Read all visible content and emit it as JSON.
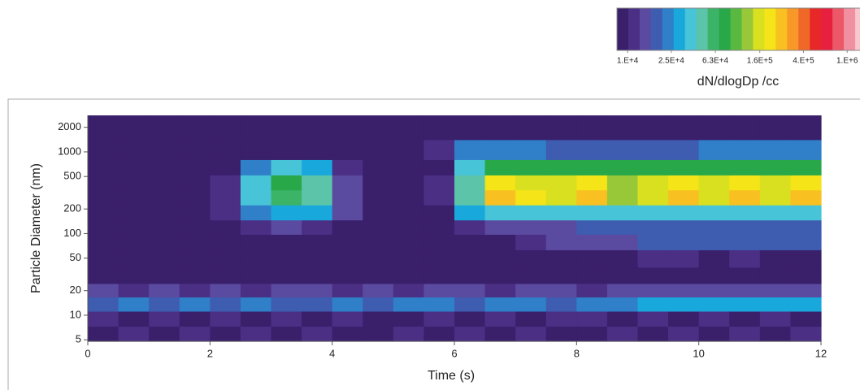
{
  "chart_data": {
    "type": "heatmap",
    "x_label": "Time (s)",
    "y_label": "Particle Diameter (nm)",
    "colorbar_label": "dN/dlogDp /cc",
    "xlim": [
      0,
      12
    ],
    "xticks": [
      0,
      2,
      4,
      6,
      8,
      10,
      12
    ],
    "ylim": [
      4.8,
      2800
    ],
    "yticks": [
      5,
      10,
      20,
      50,
      100,
      200,
      500,
      1000,
      2000
    ],
    "y_scale": "log",
    "color_scale": "log",
    "clim": [
      8000,
      1500000
    ],
    "cticks": [
      {
        "value": 10000,
        "label": "1.E+4"
      },
      {
        "value": 25000,
        "label": "2.5E+4"
      },
      {
        "value": 63000,
        "label": "6.3E+4"
      },
      {
        "value": 160000,
        "label": "1.6E+5"
      },
      {
        "value": 400000,
        "label": "4.E+5"
      },
      {
        "value": 1000000,
        "label": "1.E+6"
      }
    ],
    "colormap": [
      "#3a1f6b",
      "#4b2f85",
      "#5a4aa0",
      "#3e5cb0",
      "#2f80c8",
      "#18a8dc",
      "#48c4d8",
      "#5cc4a8",
      "#3cb468",
      "#28a848",
      "#58b840",
      "#98c838",
      "#d8e020",
      "#f4e418",
      "#f8c020",
      "#f89828",
      "#f06828",
      "#e82828",
      "#e82040",
      "#ec5868",
      "#f090a0",
      "#f8c8cc"
    ],
    "x": [
      0.25,
      0.75,
      1.25,
      1.75,
      2.25,
      2.75,
      3.25,
      3.75,
      4.25,
      4.75,
      5.25,
      5.75,
      6.25,
      6.75,
      7.25,
      7.75,
      8.25,
      8.75,
      9.25,
      9.75,
      10.25,
      10.75,
      11.25,
      11.75
    ],
    "y": [
      6,
      9,
      14,
      20,
      30,
      50,
      80,
      120,
      180,
      280,
      420,
      650,
      1000,
      2000
    ],
    "values": [
      [
        9000,
        12000,
        9000,
        11000,
        9000,
        12000,
        9000,
        11000,
        9000,
        9000,
        12000,
        9000,
        11000,
        9000,
        12000,
        9000,
        9000,
        12000,
        9000,
        11000,
        9000,
        12000,
        9000,
        11000
      ],
      [
        11000,
        9000,
        12000,
        9000,
        11000,
        9000,
        12000,
        9000,
        11000,
        9000,
        9000,
        12000,
        9000,
        11000,
        9000,
        12000,
        11000,
        9000,
        12000,
        9000,
        12000,
        9000,
        11000,
        9000
      ],
      [
        20000,
        22000,
        18000,
        22000,
        20000,
        22000,
        20000,
        18000,
        22000,
        20000,
        24000,
        22000,
        20000,
        24000,
        22000,
        20000,
        22000,
        26000,
        28000,
        30000,
        28000,
        30000,
        32000,
        30000
      ],
      [
        13000,
        12000,
        14000,
        12000,
        13000,
        12000,
        14000,
        13000,
        12000,
        13000,
        12000,
        14000,
        13000,
        12000,
        13000,
        14000,
        12000,
        14000,
        15000,
        14000,
        15000,
        14000,
        15000,
        14000
      ],
      [
        9000,
        9000,
        9000,
        9000,
        9000,
        9000,
        9000,
        9000,
        9000,
        9000,
        9000,
        9000,
        9000,
        9000,
        9000,
        9000,
        9000,
        9000,
        9000,
        9000,
        9000,
        9000,
        9000,
        9000
      ],
      [
        9000,
        9000,
        9000,
        9000,
        9000,
        9000,
        9000,
        9000,
        9000,
        9000,
        9000,
        9000,
        9000,
        9000,
        9000,
        9000,
        10000,
        10000,
        11000,
        11000,
        10000,
        11000,
        10000,
        10000
      ],
      [
        9000,
        9000,
        9000,
        9000,
        9000,
        9000,
        9000,
        9000,
        9000,
        9000,
        9000,
        9000,
        9000,
        9000,
        11000,
        13000,
        15000,
        16000,
        17000,
        18000,
        17000,
        18000,
        17000,
        18000
      ],
      [
        9000,
        10000,
        9000,
        9000,
        9000,
        11000,
        14000,
        12000,
        10000,
        9000,
        9000,
        9000,
        12000,
        14000,
        14000,
        16000,
        17000,
        18000,
        18000,
        18000,
        19000,
        19000,
        19000,
        19000
      ],
      [
        9000,
        9000,
        9000,
        9000,
        11000,
        22000,
        30000,
        28000,
        14000,
        9000,
        9000,
        9000,
        30000,
        40000,
        40000,
        40000,
        40000,
        40000,
        40000,
        40000,
        40000,
        40000,
        40000,
        40000
      ],
      [
        9000,
        9000,
        9000,
        9000,
        12000,
        35000,
        60000,
        45000,
        15000,
        9000,
        9000,
        11000,
        50000,
        250000,
        200000,
        150000,
        280000,
        130000,
        160000,
        250000,
        170000,
        250000,
        160000,
        250000
      ],
      [
        9000,
        9000,
        9000,
        9000,
        12000,
        35000,
        70000,
        50000,
        15000,
        9000,
        9000,
        11000,
        50000,
        200000,
        170000,
        140000,
        220000,
        130000,
        150000,
        200000,
        160000,
        200000,
        150000,
        200000
      ],
      [
        9000,
        9000,
        9000,
        9000,
        10000,
        22000,
        35000,
        28000,
        12000,
        9000,
        9000,
        10000,
        35000,
        70000,
        70000,
        70000,
        70000,
        70000,
        70000,
        70000,
        70000,
        70000,
        70000,
        70000
      ],
      [
        9000,
        9000,
        9000,
        9000,
        9000,
        9000,
        9000,
        9000,
        9000,
        9000,
        9000,
        12000,
        22000,
        25000,
        22000,
        20000,
        20000,
        20000,
        20000,
        20000,
        22000,
        22000,
        22000,
        22000
      ],
      [
        9000,
        9000,
        9000,
        9000,
        9000,
        9000,
        9000,
        9000,
        9000,
        9000,
        9000,
        9000,
        9000,
        9000,
        9000,
        9000,
        9000,
        9000,
        9000,
        9000,
        9000,
        9000,
        9000,
        9000
      ]
    ]
  }
}
